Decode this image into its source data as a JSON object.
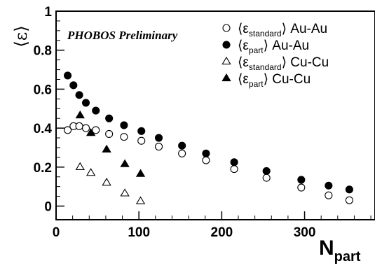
{
  "chart_data": {
    "type": "scatter",
    "title": "",
    "annotation": "PHOBOS Preliminary",
    "xlabel": {
      "main": "N",
      "sub": "part"
    },
    "ylabel": "⟨ε⟩",
    "xlim": [
      0,
      385
    ],
    "ylim": [
      -0.07,
      1.0
    ],
    "xticks": [
      0,
      100,
      200,
      300
    ],
    "yticks": [
      0,
      0.2,
      0.4,
      0.6,
      0.8,
      1
    ],
    "ytick_labels": [
      "0",
      "0.2",
      "0.4",
      "0.6",
      "0.8",
      "1"
    ],
    "xtick_labels": [
      "0",
      "100",
      "200",
      "300"
    ],
    "legend_position": "top-right",
    "series": [
      {
        "name": "⟨ε_standard⟩ Au-Au",
        "legend": {
          "pre": "⟨ε",
          "sub": "standard",
          "post": "⟩ Au-Au"
        },
        "marker": "circle-open",
        "points": [
          [
            14,
            0.39
          ],
          [
            21,
            0.41
          ],
          [
            28,
            0.41
          ],
          [
            36,
            0.4
          ],
          [
            48,
            0.39
          ],
          [
            64,
            0.37
          ],
          [
            82,
            0.355
          ],
          [
            103,
            0.335
          ],
          [
            124,
            0.305
          ],
          [
            152,
            0.27
          ],
          [
            181,
            0.235
          ],
          [
            215,
            0.19
          ],
          [
            254,
            0.145
          ],
          [
            296,
            0.095
          ],
          [
            329,
            0.055
          ],
          [
            354,
            0.03
          ]
        ]
      },
      {
        "name": "⟨ε_part⟩ Au-Au",
        "legend": {
          "pre": "⟨ε",
          "sub": "part",
          "post": "⟩ Au-Au"
        },
        "marker": "circle-filled",
        "points": [
          [
            14,
            0.67
          ],
          [
            21,
            0.62
          ],
          [
            28,
            0.57
          ],
          [
            36,
            0.53
          ],
          [
            48,
            0.49
          ],
          [
            64,
            0.45
          ],
          [
            82,
            0.415
          ],
          [
            103,
            0.385
          ],
          [
            124,
            0.35
          ],
          [
            152,
            0.31
          ],
          [
            181,
            0.27
          ],
          [
            215,
            0.225
          ],
          [
            254,
            0.18
          ],
          [
            296,
            0.135
          ],
          [
            329,
            0.105
          ],
          [
            354,
            0.085
          ]
        ]
      },
      {
        "name": "⟨ε_standard⟩ Cu-Cu",
        "legend": {
          "pre": "⟨ε",
          "sub": "standard",
          "post": "⟩ Cu-Cu"
        },
        "marker": "triangle-open",
        "points": [
          [
            29,
            0.2
          ],
          [
            42,
            0.17
          ],
          [
            61,
            0.12
          ],
          [
            83,
            0.065
          ],
          [
            102,
            0.025
          ]
        ]
      },
      {
        "name": "⟨ε_part⟩ Cu-Cu",
        "legend": {
          "pre": "⟨ε",
          "sub": "part",
          "post": "⟩ Cu-Cu"
        },
        "marker": "triangle-filled",
        "points": [
          [
            29,
            0.465
          ],
          [
            42,
            0.375
          ],
          [
            61,
            0.29
          ],
          [
            83,
            0.215
          ],
          [
            102,
            0.165
          ]
        ]
      }
    ]
  }
}
